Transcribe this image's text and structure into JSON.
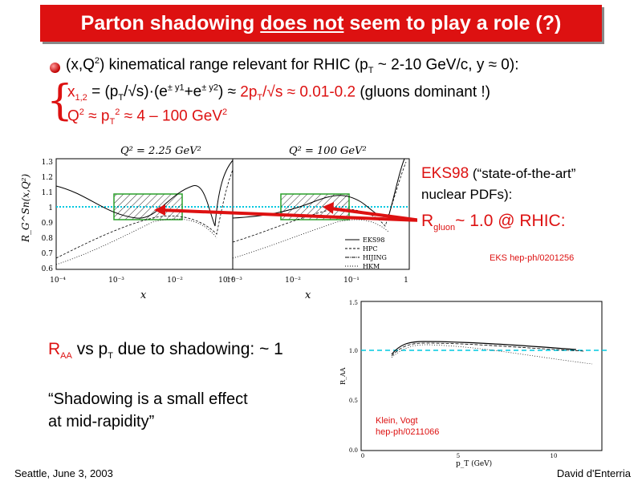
{
  "title": {
    "pre": "Parton shadowing ",
    "underlined": "does not",
    "post": " seem to play a role (?)"
  },
  "bullet1": {
    "a": "(x,Q",
    "a_sup": "2",
    "b": ") kinematical range relevant for RHIC (p",
    "b_sub": "T",
    "c": " ~ 2-10 GeV/c, y ≈ 0):"
  },
  "xline": {
    "x": "x",
    "x_sub": "1,2",
    "eq": " = (p",
    "t1": "T",
    "s1": "/√s)·(e",
    "sup1": "± y1",
    "plus": "+e",
    "sup2": "± y2",
    "close": ") ≈ ",
    "r1": "2p",
    "t2": "T",
    "r2": "/√s ≈ 0.01-0.2",
    "gl": "  (gluons dominant !)"
  },
  "qline": {
    "q": "Q",
    "q_sup": "2",
    "eq": " ≈ p",
    "t": "T",
    "t_sup": "2",
    "rest": " ≈ 4 – 100 GeV",
    "g_sup": "2"
  },
  "plot1": {
    "panel_left_title": "Q² = 2.25 GeV²",
    "panel_right_title": "Q² = 100 GeV²",
    "ylabel": "R_G^Sn(x,Q²)",
    "yticks": [
      "1.3",
      "1.2",
      "1.1",
      "1",
      "0.9",
      "0.8",
      "0.7",
      "0.6"
    ],
    "xticks_left": [
      "10⁻⁴",
      "10⁻³",
      "10⁻²",
      "10⁻¹"
    ],
    "xticks_right": [
      "10⁻³",
      "10⁻²",
      "10⁻¹",
      "1"
    ],
    "xlabel": "x",
    "legend": [
      "EKS98",
      "HPC",
      "HIJING",
      "HKM"
    ]
  },
  "eks": {
    "name": "EKS98",
    "desc": " (“state-of-the-art”",
    "desc2": "nuclear PDFs):"
  },
  "rgluon": {
    "r": "R",
    "sub": "gluon",
    "rest": "~ 1.0 @ RHIC:"
  },
  "eks_ref": "EKS hep-ph/0201256",
  "raa": {
    "r": "R",
    "sub": "AA",
    "mid": " vs p",
    "t": "T",
    "rest": " due to shadowing: ~ 1"
  },
  "quote": {
    "l1": "“Shadowing is a small effect",
    "l2": " at mid-rapidity”"
  },
  "plot2": {
    "ylabel": "R_AA",
    "yticks": [
      "1.5",
      "1.0",
      "0.5",
      "0.0"
    ],
    "xticks": [
      "0",
      "5",
      "10"
    ],
    "xlabel": "p_T (GeV)"
  },
  "klein": {
    "l1": "Klein, Vogt",
    "l2": "hep-ph/0211066"
  },
  "footer": {
    "left": "Seattle, June  3, 2003",
    "right": "David d'Enterria"
  }
}
